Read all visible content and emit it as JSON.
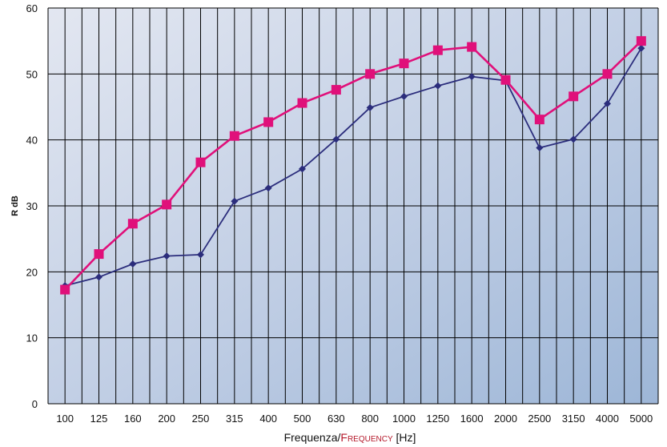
{
  "chart_data": {
    "type": "line",
    "categories": [
      "100",
      "125",
      "160",
      "200",
      "250",
      "315",
      "400",
      "500",
      "630",
      "800",
      "1000",
      "1250",
      "1600",
      "2000",
      "2500",
      "3150",
      "4000",
      "5000"
    ],
    "ylabel": "R dB",
    "xlabel": {
      "prefix": "Frequenza/",
      "highlight": "Frequency",
      "suffix": " [Hz]"
    },
    "yticks": [
      0,
      10,
      20,
      30,
      40,
      50,
      60
    ],
    "ylim": [
      0,
      60
    ],
    "grid": true,
    "series": [
      {
        "marker": "diamond",
        "color": "#2b2d7c",
        "values": [
          17.9,
          19.2,
          21.2,
          22.4,
          22.6,
          30.7,
          32.7,
          35.6,
          40.1,
          44.9,
          46.6,
          48.2,
          49.6,
          49.0,
          38.8,
          40.1,
          45.5,
          53.9
        ]
      },
      {
        "marker": "square",
        "color": "#e0107a",
        "values": [
          17.3,
          22.7,
          27.3,
          30.2,
          36.6,
          40.6,
          42.7,
          45.6,
          47.6,
          50.0,
          51.6,
          53.6,
          54.1,
          49.1,
          43.1,
          46.6,
          50.0,
          55.0
        ]
      }
    ],
    "colors": {
      "highlight_text": "#b5192b",
      "grid": "#000000",
      "bg_top": "#e3e7f1",
      "bg_bottom": "#9db6d7"
    }
  }
}
